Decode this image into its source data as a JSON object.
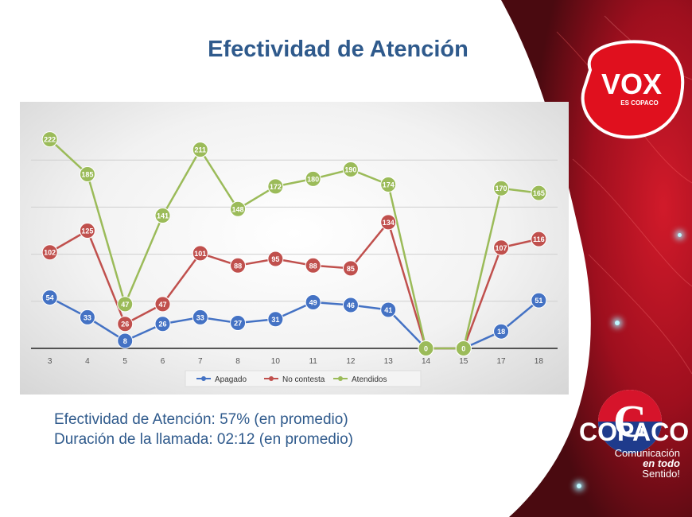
{
  "slide": {
    "title": "Efectividad de Atención",
    "summary_line1": "Efectividad de Atención: 57% (en promedio)",
    "summary_line2": "Duración de la llamada: 02:12 (en promedio)"
  },
  "branding": {
    "vox_text": "VOX",
    "vox_sub": "ES COPACO",
    "copaco_text": "COPACO",
    "tagline_line1": "Comunicación",
    "tagline_line2": "en todo",
    "tagline_line3": "Sentido!",
    "colors": {
      "brand_red": "#c8102e",
      "title_blue": "#2f5a8c"
    }
  },
  "chart_data": {
    "type": "line",
    "categories": [
      "3",
      "4",
      "5",
      "6",
      "7",
      "8",
      "10",
      "11",
      "12",
      "13",
      "14",
      "15",
      "17",
      "18"
    ],
    "series": [
      {
        "name": "Apagado",
        "color": "#4472c4",
        "values": [
          54,
          33,
          8,
          26,
          33,
          27,
          31,
          49,
          46,
          41,
          0,
          0,
          18,
          51
        ]
      },
      {
        "name": "No contesta",
        "color": "#c0504d",
        "values": [
          102,
          125,
          26,
          47,
          101,
          88,
          95,
          88,
          85,
          134,
          0,
          0,
          107,
          116
        ]
      },
      {
        "name": "Atendidos",
        "color": "#9bbb59",
        "values": [
          222,
          185,
          47,
          141,
          211,
          148,
          172,
          180,
          190,
          174,
          0,
          0,
          170,
          165
        ]
      }
    ],
    "ylim": [
      0,
      250
    ],
    "grid": true,
    "legend": "bottom",
    "data_labels": true
  }
}
